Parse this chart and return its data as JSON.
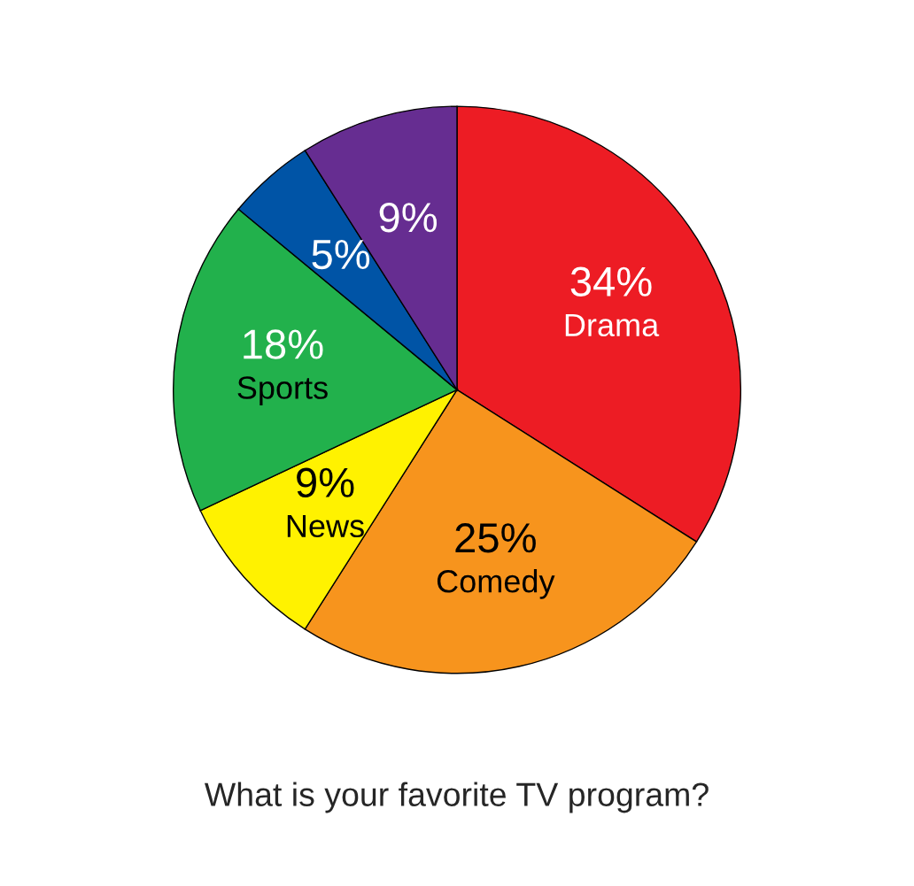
{
  "chart_data": {
    "type": "pie",
    "title": "What is your favorite TV program?",
    "categories": [
      "Drama",
      "Comedy",
      "News",
      "Sports",
      null,
      null
    ],
    "values": [
      34,
      25,
      9,
      18,
      5,
      9
    ],
    "value_labels": [
      "34%",
      "25%",
      "9%",
      "18%",
      "5%",
      "9%"
    ],
    "colors": [
      "#ed1c24",
      "#f7941d",
      "#fff200",
      "#22b14c",
      "#0054a6",
      "#662d91"
    ]
  }
}
